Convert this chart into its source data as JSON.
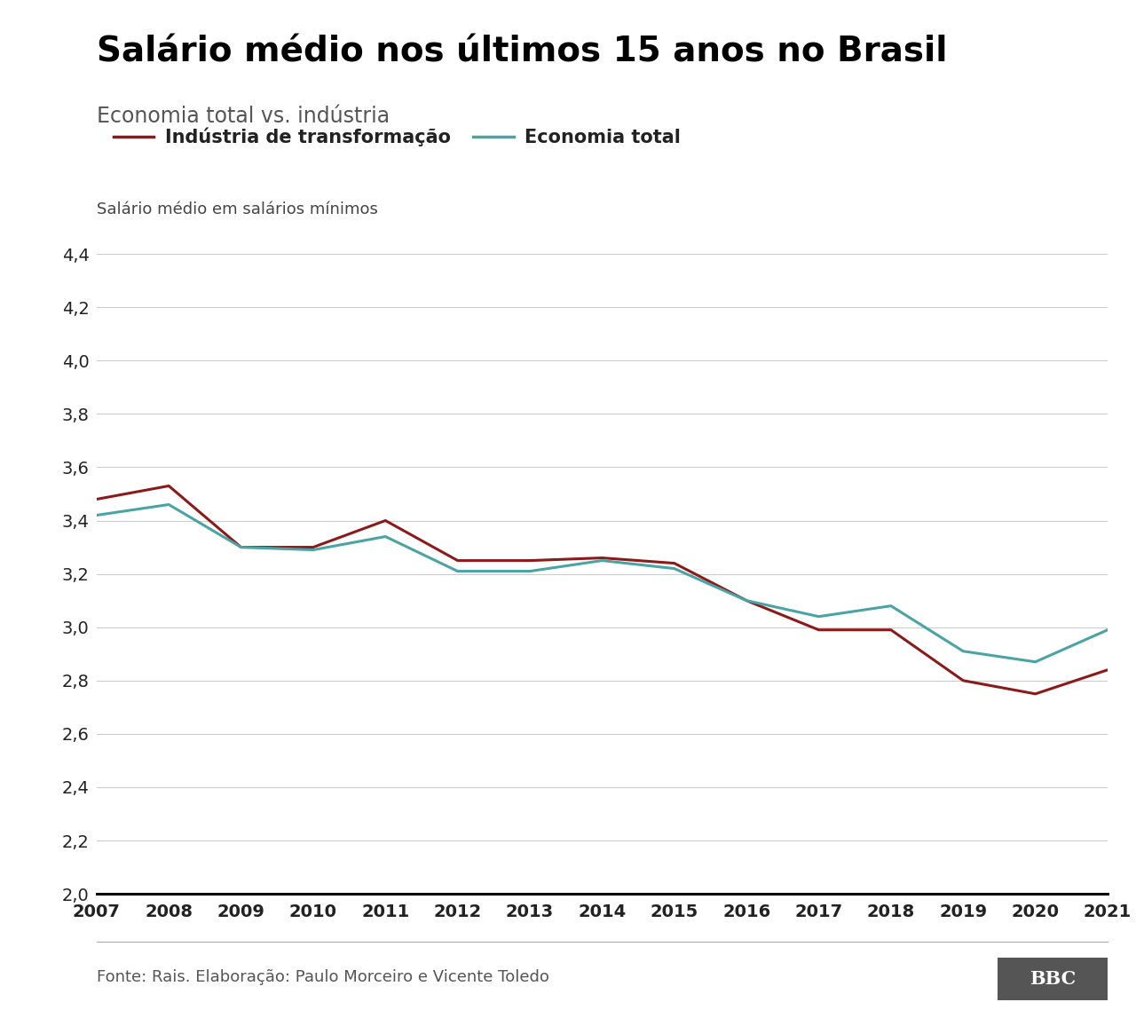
{
  "title": "Salário médio nos últimos 15 anos no Brasil",
  "subtitle": "Economia total vs. indústria",
  "ylabel": "Salário médio em salários mínimos",
  "footer": "Fonte: Rais. Elaboração: Paulo Morceiro e Vicente Toledo",
  "years": [
    2007,
    2008,
    2009,
    2010,
    2011,
    2012,
    2013,
    2014,
    2015,
    2016,
    2017,
    2018,
    2019,
    2020,
    2021
  ],
  "industria": [
    3.48,
    3.53,
    3.3,
    3.3,
    3.4,
    3.25,
    3.25,
    3.26,
    3.24,
    3.1,
    2.99,
    2.99,
    2.8,
    2.75,
    2.84
  ],
  "economia": [
    3.42,
    3.46,
    3.3,
    3.29,
    3.34,
    3.21,
    3.21,
    3.25,
    3.22,
    3.1,
    3.04,
    3.08,
    2.91,
    2.87,
    2.99
  ],
  "industria_color": "#8B1A1A",
  "economia_color": "#4AA4A4",
  "line_width": 2.2,
  "ylim_min": 2.0,
  "ylim_max": 4.5,
  "yticks": [
    2.0,
    2.2,
    2.4,
    2.6,
    2.8,
    3.0,
    3.2,
    3.4,
    3.6,
    3.8,
    4.0,
    4.2,
    4.4
  ],
  "legend_industria": "Indústria de transformação",
  "legend_economia": "Economia total",
  "background_color": "#ffffff",
  "grid_color": "#cccccc",
  "title_fontsize": 28,
  "subtitle_fontsize": 17,
  "ylabel_fontsize": 13,
  "tick_fontsize": 14,
  "legend_fontsize": 15,
  "footer_fontsize": 13,
  "title_color": "#000000",
  "subtitle_color": "#555555",
  "tick_color": "#222222",
  "footer_color": "#555555",
  "bbc_bg": "#555555"
}
